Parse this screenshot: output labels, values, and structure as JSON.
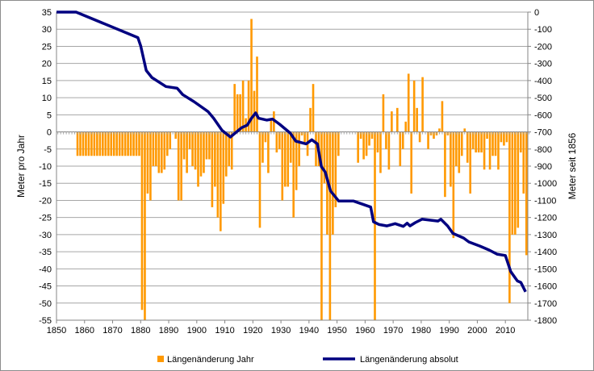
{
  "chart_data": {
    "type": "bar+line",
    "title": "",
    "xlabel": "",
    "ylabel_left": "Meter pro Jahr",
    "ylabel_right": "Meter seit 1856",
    "xlim": [
      1850,
      2018
    ],
    "ylim_left": [
      -55,
      35
    ],
    "ylim_right": [
      -1800,
      0
    ],
    "x_ticks": [
      "1850",
      "1860",
      "1870",
      "1880",
      "1890",
      "1900",
      "1910",
      "1920",
      "1930",
      "1940",
      "1950",
      "1960",
      "1970",
      "1980",
      "1990",
      "2000",
      "2010"
    ],
    "y_left_ticks": [
      "35",
      "30",
      "25",
      "20",
      "15",
      "10",
      "5",
      "0",
      "-5",
      "-10",
      "-15",
      "-20",
      "-25",
      "-30",
      "-35",
      "-40",
      "-45",
      "-50",
      "-55"
    ],
    "y_right_ticks": [
      "0",
      "-100",
      "-200",
      "-300",
      "-400",
      "-500",
      "-600",
      "-700",
      "-800",
      "-900",
      "-1000",
      "-1100",
      "-1200",
      "-1300",
      "-1400",
      "-1500",
      "-1600",
      "-1700",
      "-1800"
    ],
    "grid": true,
    "legend_position": "bottom",
    "legend": [
      "Längenänderung Jahr",
      "Längenänderung absolut"
    ],
    "colors": {
      "bars": "#ff9900",
      "line": "#000080",
      "grid": "#a6a6a6"
    },
    "series": [
      {
        "name": "Längenänderung Jahr",
        "axis": "left",
        "type": "bar",
        "points": [
          [
            1857,
            -7
          ],
          [
            1858,
            -7
          ],
          [
            1859,
            -7
          ],
          [
            1860,
            -7
          ],
          [
            1861,
            -7
          ],
          [
            1862,
            -7
          ],
          [
            1863,
            -7
          ],
          [
            1864,
            -7
          ],
          [
            1865,
            -7
          ],
          [
            1866,
            -7
          ],
          [
            1867,
            -7
          ],
          [
            1868,
            -7
          ],
          [
            1869,
            -7
          ],
          [
            1870,
            -7
          ],
          [
            1871,
            -7
          ],
          [
            1872,
            -7
          ],
          [
            1873,
            -7
          ],
          [
            1874,
            -7
          ],
          [
            1875,
            -7
          ],
          [
            1876,
            -7
          ],
          [
            1877,
            -7
          ],
          [
            1878,
            -7
          ],
          [
            1879,
            -7
          ],
          [
            1880,
            -52
          ],
          [
            1881,
            -55
          ],
          [
            1882,
            -18
          ],
          [
            1883,
            -20
          ],
          [
            1884,
            -10
          ],
          [
            1885,
            -10
          ],
          [
            1886,
            -12
          ],
          [
            1887,
            -12
          ],
          [
            1888,
            -11
          ],
          [
            1889,
            -7
          ],
          [
            1890,
            -5
          ],
          [
            1892,
            -2
          ],
          [
            1893,
            -20
          ],
          [
            1894,
            -20
          ],
          [
            1895,
            -8
          ],
          [
            1896,
            -12
          ],
          [
            1897,
            -5
          ],
          [
            1898,
            -10
          ],
          [
            1899,
            -11
          ],
          [
            1900,
            -16
          ],
          [
            1901,
            -13
          ],
          [
            1902,
            -12
          ],
          [
            1903,
            -8
          ],
          [
            1904,
            -8
          ],
          [
            1905,
            -22
          ],
          [
            1906,
            -16
          ],
          [
            1907,
            -25
          ],
          [
            1908,
            -29
          ],
          [
            1909,
            -21
          ],
          [
            1910,
            -13
          ],
          [
            1911,
            -10
          ],
          [
            1912,
            -11
          ],
          [
            1913,
            14
          ],
          [
            1914,
            11
          ],
          [
            1915,
            11
          ],
          [
            1916,
            15
          ],
          [
            1917,
            4
          ],
          [
            1918,
            15
          ],
          [
            1919,
            33
          ],
          [
            1920,
            12
          ],
          [
            1921,
            22
          ],
          [
            1922,
            -28
          ],
          [
            1923,
            -9
          ],
          [
            1924,
            -3
          ],
          [
            1925,
            -12
          ],
          [
            1926,
            4
          ],
          [
            1927,
            6
          ],
          [
            1928,
            -6
          ],
          [
            1929,
            -5
          ],
          [
            1930,
            -20
          ],
          [
            1931,
            -16
          ],
          [
            1932,
            -16
          ],
          [
            1933,
            -9
          ],
          [
            1934,
            -25
          ],
          [
            1935,
            -17
          ],
          [
            1936,
            -10
          ],
          [
            1937,
            -1
          ],
          [
            1938,
            -3
          ],
          [
            1939,
            -7
          ],
          [
            1940,
            7
          ],
          [
            1941,
            14
          ],
          [
            1942,
            -10
          ],
          [
            1943,
            -10
          ],
          [
            1944,
            -55
          ],
          [
            1945,
            -15
          ],
          [
            1946,
            -30
          ],
          [
            1947,
            -55
          ],
          [
            1948,
            -30
          ],
          [
            1949,
            -22
          ],
          [
            1950,
            -7
          ],
          [
            1957,
            -9
          ],
          [
            1958,
            -2
          ],
          [
            1959,
            -8
          ],
          [
            1960,
            -7
          ],
          [
            1961,
            -4
          ],
          [
            1962,
            -2
          ],
          [
            1963,
            -55
          ],
          [
            1964,
            -6
          ],
          [
            1965,
            -12
          ],
          [
            1966,
            11
          ],
          [
            1967,
            -5
          ],
          [
            1968,
            -11
          ],
          [
            1969,
            6
          ],
          [
            1971,
            7
          ],
          [
            1972,
            -10
          ],
          [
            1973,
            -5
          ],
          [
            1974,
            3
          ],
          [
            1975,
            17
          ],
          [
            1976,
            -18
          ],
          [
            1977,
            15
          ],
          [
            1978,
            7
          ],
          [
            1979,
            -3
          ],
          [
            1980,
            16
          ],
          [
            1982,
            -5
          ],
          [
            1983,
            -1
          ],
          [
            1984,
            -2
          ],
          [
            1985,
            -1
          ],
          [
            1986,
            1
          ],
          [
            1987,
            9
          ],
          [
            1988,
            -19
          ],
          [
            1989,
            -1
          ],
          [
            1990,
            -16
          ],
          [
            1991,
            -31
          ],
          [
            1992,
            -10
          ],
          [
            1993,
            -12
          ],
          [
            1994,
            -7
          ],
          [
            1995,
            1
          ],
          [
            1996,
            -9
          ],
          [
            1997,
            -18
          ],
          [
            1998,
            -5
          ],
          [
            1999,
            -6
          ],
          [
            2000,
            -6
          ],
          [
            2001,
            -6
          ],
          [
            2002,
            -11
          ],
          [
            2003,
            -2
          ],
          [
            2004,
            -11
          ],
          [
            2005,
            -7
          ],
          [
            2006,
            -7
          ],
          [
            2007,
            -11
          ],
          [
            2008,
            -3
          ],
          [
            2009,
            -4
          ],
          [
            2010,
            -3
          ],
          [
            2011,
            -50
          ],
          [
            2012,
            -30
          ],
          [
            2013,
            -30
          ],
          [
            2014,
            -28
          ],
          [
            2015,
            -6
          ],
          [
            2016,
            -18
          ],
          [
            2017,
            -36
          ]
        ]
      },
      {
        "name": "Längenänderung absolut",
        "axis": "right",
        "type": "line",
        "points": [
          [
            1850,
            0
          ],
          [
            1857,
            0
          ],
          [
            1879,
            -149
          ],
          [
            1880,
            -197
          ],
          [
            1882,
            -341
          ],
          [
            1884,
            -382
          ],
          [
            1889,
            -435
          ],
          [
            1893,
            -445
          ],
          [
            1895,
            -482
          ],
          [
            1899,
            -523
          ],
          [
            1904,
            -581
          ],
          [
            1906,
            -620
          ],
          [
            1909,
            -691
          ],
          [
            1912,
            -730
          ],
          [
            1916,
            -675
          ],
          [
            1918,
            -660
          ],
          [
            1919.5,
            -620
          ],
          [
            1921,
            -589
          ],
          [
            1922,
            -620
          ],
          [
            1925,
            -631
          ],
          [
            1927,
            -625
          ],
          [
            1929.5,
            -655
          ],
          [
            1933.3,
            -707
          ],
          [
            1935.3,
            -754
          ],
          [
            1939,
            -770
          ],
          [
            1941,
            -746
          ],
          [
            1943,
            -770
          ],
          [
            1944.4,
            -903
          ],
          [
            1945.8,
            -935
          ],
          [
            1947.7,
            -1045
          ],
          [
            1950.6,
            -1104
          ],
          [
            1955.9,
            -1104
          ],
          [
            1959.2,
            -1123
          ],
          [
            1962,
            -1139
          ],
          [
            1963,
            -1225
          ],
          [
            1965,
            -1241
          ],
          [
            1967.8,
            -1249
          ],
          [
            1970.7,
            -1236
          ],
          [
            1973.6,
            -1252
          ],
          [
            1975,
            -1233
          ],
          [
            1976,
            -1249
          ],
          [
            1977.9,
            -1230
          ],
          [
            1980.3,
            -1210
          ],
          [
            1986,
            -1221
          ],
          [
            1987,
            -1210
          ],
          [
            1989.4,
            -1249
          ],
          [
            1991.3,
            -1293
          ],
          [
            1995.1,
            -1320
          ],
          [
            1997,
            -1343
          ],
          [
            2000.9,
            -1367
          ],
          [
            2004.2,
            -1390
          ],
          [
            2007,
            -1414
          ],
          [
            2010,
            -1422
          ],
          [
            2011.9,
            -1516
          ],
          [
            2014.3,
            -1571
          ],
          [
            2015.5,
            -1579
          ],
          [
            2017.2,
            -1634
          ]
        ]
      }
    ]
  }
}
